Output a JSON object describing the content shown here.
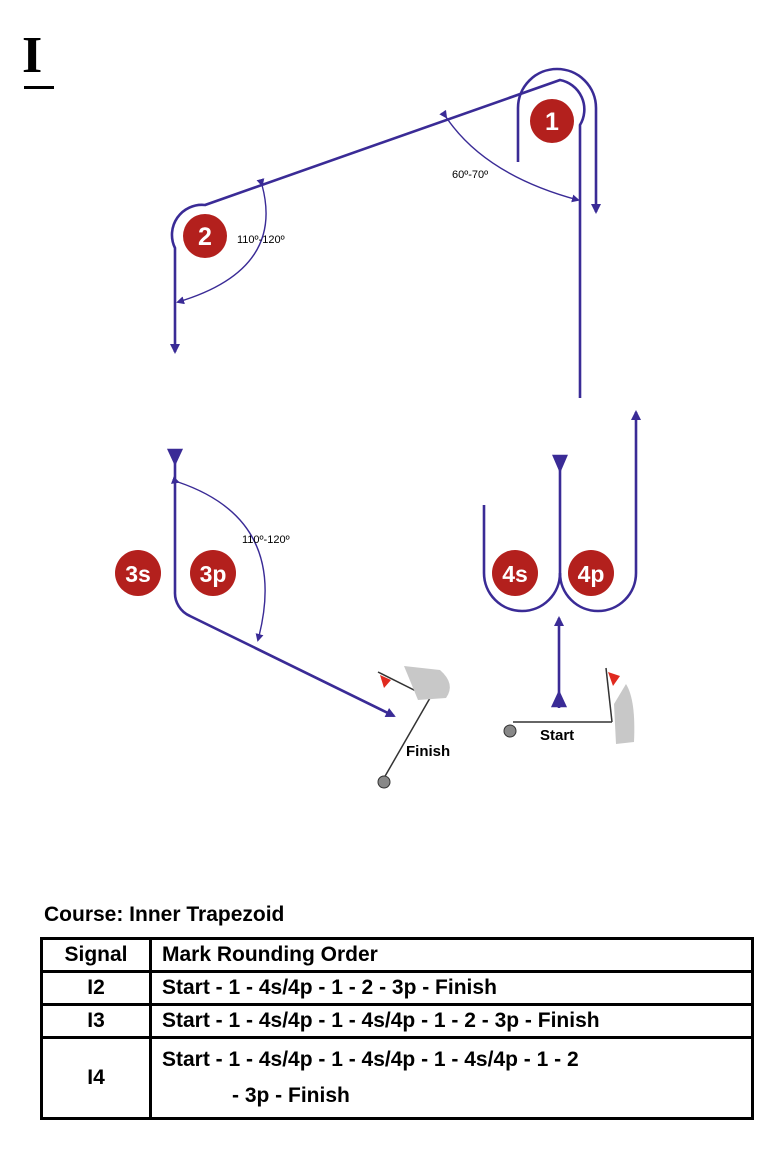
{
  "course_label": "I",
  "diagram": {
    "marks": [
      "1",
      "2",
      "3s",
      "3p",
      "4s",
      "4p"
    ],
    "angles": [
      "60º-70º",
      "110º-120º",
      "110º-120º"
    ],
    "labels": {
      "finish": "Finish",
      "start": "Start"
    },
    "colors": {
      "course": "#3a2b96",
      "mark": "#b3201d",
      "boat": "#c8c8c8",
      "flag": "#e02a1f"
    }
  },
  "table": {
    "title": "Course:  Inner Trapezoid",
    "headers": [
      "Signal",
      "Mark Rounding Order"
    ],
    "rows": [
      {
        "signal": "I2",
        "order": "Start - 1 - 4s/4p - 1 - 2 - 3p - Finish"
      },
      {
        "signal": "I3",
        "order": "Start - 1 - 4s/4p - 1 - 4s/4p - 1 - 2 - 3p - Finish"
      },
      {
        "signal": "I4",
        "order": "Start - 1 - 4s/4p - 1 - 4s/4p - 1 - 4s/4p - 1 - 2",
        "order_cont": "- 3p - Finish"
      }
    ]
  }
}
